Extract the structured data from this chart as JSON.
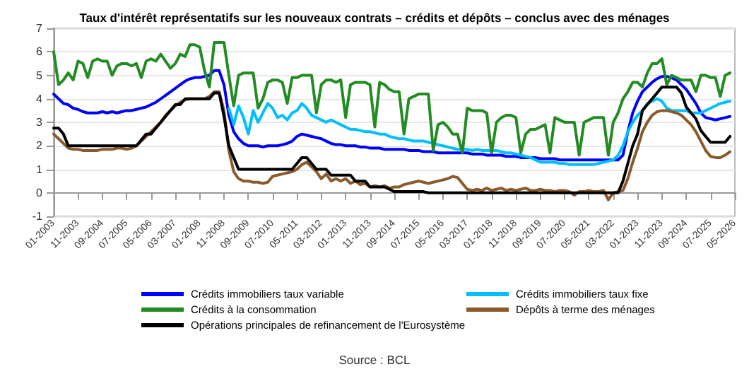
{
  "chart_data": {
    "type": "line",
    "title": "Taux d'intérêt représentatifs sur les nouveaux contrats – crédits et dépôts – conclus avec des ménages",
    "annotations": [
      "Source : BCL"
    ],
    "categories": [
      "01-2003",
      null,
      null,
      null,
      null,
      "11-2003",
      null,
      null,
      null,
      null,
      "09-2004",
      null,
      null,
      null,
      null,
      "07-2005",
      null,
      null,
      null,
      null,
      "05-2006",
      null,
      null,
      null,
      null,
      "03-2007",
      null,
      null,
      null,
      null,
      "01-2008",
      null,
      null,
      null,
      null,
      "11-2008",
      null,
      null,
      null,
      null,
      "09-2009",
      null,
      null,
      null,
      null,
      "07-2010",
      null,
      null,
      null,
      null,
      "05-2011",
      null,
      null,
      null,
      null,
      "03-2012",
      null,
      null,
      null,
      null,
      "01-2013",
      null,
      null,
      null,
      null,
      "11-2013",
      null,
      null,
      null,
      null,
      "09-2014",
      null,
      null,
      null,
      null,
      "07-2015",
      null,
      null,
      null,
      null,
      "05-2016",
      null,
      null,
      null,
      null,
      "03-2017",
      null,
      null,
      null,
      null,
      "01-2018",
      null,
      null,
      null,
      null,
      "11-2018",
      null,
      null,
      null,
      null,
      "09-2019",
      null,
      null,
      null,
      null,
      "07-2020",
      null,
      null,
      null,
      null,
      "05-2021",
      null,
      null,
      null,
      null,
      "03-2022",
      null,
      null,
      null,
      null,
      "01-2023",
      null,
      null,
      null,
      null,
      "11-2023",
      null,
      null,
      null,
      null,
      "09-2024",
      null,
      null,
      null,
      null,
      "07-2025",
      null,
      null,
      null,
      null,
      "05-2026"
    ],
    "series": [
      {
        "name": "Crédits immobiliers taux variable",
        "color": "#0000ff",
        "values": [
          4.2,
          4.0,
          3.8,
          3.75,
          3.6,
          3.55,
          3.45,
          3.4,
          3.4,
          3.4,
          3.45,
          3.4,
          3.45,
          3.4,
          3.45,
          3.5,
          3.5,
          3.55,
          3.6,
          3.65,
          3.75,
          3.85,
          4.0,
          4.15,
          4.3,
          4.45,
          4.6,
          4.75,
          4.85,
          4.9,
          4.9,
          4.95,
          5.0,
          5.2,
          5.2,
          4.6,
          3.3,
          2.6,
          2.3,
          2.1,
          2.0,
          2.0,
          2.0,
          1.95,
          2.0,
          2.0,
          2.0,
          2.05,
          2.1,
          2.2,
          2.4,
          2.5,
          2.45,
          2.4,
          2.35,
          2.3,
          2.2,
          2.1,
          2.05,
          2.05,
          2.0,
          2.0,
          2.0,
          1.95,
          1.95,
          1.9,
          1.9,
          1.9,
          1.85,
          1.85,
          1.85,
          1.85,
          1.85,
          1.8,
          1.8,
          1.8,
          1.75,
          1.75,
          1.75,
          1.7,
          1.7,
          1.7,
          1.7,
          1.7,
          1.7,
          1.7,
          1.65,
          1.65,
          1.65,
          1.6,
          1.6,
          1.6,
          1.6,
          1.55,
          1.55,
          1.55,
          1.5,
          1.5,
          1.5,
          1.5,
          1.45,
          1.45,
          1.45,
          1.45,
          1.4,
          1.4,
          1.4,
          1.4,
          1.4,
          1.4,
          1.4,
          1.4,
          1.4,
          1.4,
          1.4,
          1.4,
          1.4,
          1.6,
          2.6,
          3.4,
          3.9,
          4.3,
          4.5,
          4.7,
          4.85,
          4.95,
          4.95,
          4.9,
          4.8,
          4.6,
          4.4,
          4.1,
          3.8,
          3.4,
          3.2,
          3.15,
          3.1,
          3.15,
          3.2,
          3.25,
          null
        ]
      },
      {
        "name": "Crédits immobiliers taux fixe",
        "color": "#00bfff",
        "values": [
          null,
          null,
          null,
          null,
          null,
          null,
          null,
          null,
          null,
          null,
          null,
          null,
          null,
          null,
          null,
          null,
          null,
          null,
          null,
          null,
          null,
          null,
          null,
          null,
          null,
          null,
          null,
          null,
          null,
          null,
          null,
          null,
          null,
          null,
          null,
          null,
          3.6,
          2.9,
          3.7,
          3.2,
          2.5,
          3.5,
          3.0,
          3.4,
          3.8,
          3.6,
          3.2,
          3.3,
          3.1,
          3.4,
          3.5,
          3.8,
          3.6,
          3.3,
          3.2,
          3.1,
          3.0,
          3.1,
          3.0,
          2.9,
          2.8,
          2.7,
          2.7,
          2.65,
          2.6,
          2.6,
          2.55,
          2.5,
          2.5,
          2.4,
          2.35,
          2.3,
          2.3,
          2.25,
          2.2,
          2.2,
          2.2,
          2.15,
          2.1,
          2.05,
          2.0,
          1.95,
          1.9,
          1.85,
          1.85,
          1.85,
          1.8,
          1.85,
          1.8,
          1.8,
          1.8,
          1.8,
          1.75,
          1.7,
          1.7,
          1.65,
          1.6,
          1.55,
          1.5,
          1.4,
          1.3,
          1.3,
          1.3,
          1.3,
          1.25,
          1.25,
          1.2,
          1.2,
          1.2,
          1.2,
          1.2,
          1.2,
          1.25,
          1.3,
          1.35,
          1.4,
          1.6,
          2.0,
          2.6,
          3.0,
          3.3,
          3.5,
          3.8,
          3.9,
          4.0,
          3.9,
          3.6,
          3.5,
          3.5,
          3.5,
          3.5,
          3.4,
          3.4,
          3.4,
          3.5,
          3.6,
          3.7,
          3.8,
          3.85,
          3.9,
          null
        ]
      },
      {
        "name": "Crédits à la consommation",
        "color": "#228b22",
        "values": [
          6.0,
          4.6,
          4.8,
          5.1,
          4.8,
          5.6,
          5.5,
          4.9,
          5.6,
          5.7,
          5.6,
          5.6,
          5.0,
          5.4,
          5.5,
          5.5,
          5.4,
          5.5,
          4.9,
          5.6,
          5.7,
          5.6,
          5.9,
          5.6,
          5.3,
          5.5,
          5.9,
          5.8,
          6.3,
          6.3,
          6.2,
          5.2,
          4.5,
          6.4,
          6.4,
          6.4,
          5.0,
          3.7,
          5.0,
          5.1,
          5.1,
          5.1,
          3.6,
          4.0,
          4.7,
          4.8,
          4.8,
          4.7,
          3.8,
          4.9,
          4.9,
          5.0,
          5.0,
          5.0,
          3.4,
          4.6,
          4.8,
          4.8,
          4.7,
          4.8,
          3.2,
          4.6,
          4.7,
          4.7,
          4.7,
          4.6,
          2.8,
          4.7,
          4.6,
          4.4,
          4.3,
          4.3,
          2.5,
          4.0,
          4.1,
          4.2,
          4.2,
          4.2,
          1.8,
          2.9,
          3.0,
          2.8,
          2.5,
          2.5,
          1.7,
          3.6,
          3.5,
          3.5,
          3.5,
          3.4,
          1.7,
          3.0,
          3.2,
          3.3,
          3.3,
          3.2,
          1.7,
          2.5,
          2.7,
          2.7,
          2.8,
          2.9,
          1.7,
          3.2,
          3.1,
          3.0,
          3.0,
          3.0,
          1.6,
          3.0,
          3.1,
          3.2,
          3.2,
          3.2,
          1.6,
          3.0,
          3.4,
          4.0,
          4.3,
          4.7,
          4.7,
          4.5,
          5.1,
          5.5,
          5.5,
          5.7,
          4.6,
          5.0,
          4.9,
          4.8,
          4.8,
          4.8,
          4.3,
          5.0,
          5.0,
          4.9,
          4.9,
          4.1,
          5.0,
          5.1,
          null
        ]
      },
      {
        "name": "Dépôts à terme des ménages",
        "color": "#8b5a2b",
        "values": [
          2.5,
          2.3,
          2.1,
          1.9,
          1.85,
          1.85,
          1.8,
          1.8,
          1.8,
          1.8,
          1.85,
          1.85,
          1.85,
          1.9,
          1.9,
          1.85,
          1.9,
          2.0,
          2.2,
          2.4,
          2.6,
          2.8,
          3.0,
          3.3,
          3.5,
          3.7,
          3.85,
          3.95,
          4.0,
          4.0,
          4.0,
          4.0,
          4.1,
          4.3,
          4.3,
          3.5,
          1.8,
          0.9,
          0.6,
          0.5,
          0.5,
          0.45,
          0.45,
          0.4,
          0.45,
          0.7,
          0.75,
          0.8,
          0.85,
          0.9,
          1.0,
          1.2,
          1.3,
          1.1,
          0.9,
          0.6,
          0.8,
          0.5,
          0.6,
          0.5,
          0.6,
          0.4,
          0.5,
          0.35,
          0.4,
          0.25,
          0.3,
          0.25,
          0.3,
          0.2,
          0.25,
          0.25,
          0.35,
          0.4,
          0.45,
          0.5,
          0.45,
          0.4,
          0.45,
          0.5,
          0.55,
          0.6,
          0.7,
          0.65,
          0.4,
          0.15,
          0.1,
          0.15,
          0.1,
          0.2,
          0.1,
          0.15,
          0.2,
          0.1,
          0.15,
          0.1,
          0.15,
          0.2,
          0.1,
          0.1,
          0.15,
          0.1,
          0.1,
          0.05,
          0.1,
          0.1,
          0.05,
          -0.1,
          0.05,
          0.05,
          0.1,
          0.05,
          0.05,
          0.1,
          -0.3,
          0.0,
          0.05,
          0.1,
          0.6,
          1.3,
          1.9,
          2.6,
          3.0,
          3.3,
          3.45,
          3.5,
          3.5,
          3.45,
          3.4,
          3.3,
          3.1,
          2.9,
          2.6,
          2.2,
          1.8,
          1.55,
          1.5,
          1.5,
          1.6,
          1.75,
          null
        ]
      },
      {
        "name": "Opérations principales de refinancement de l'Eurosystème",
        "color": "#000000",
        "values": [
          2.75,
          2.75,
          2.5,
          2.0,
          2.0,
          2.0,
          2.0,
          2.0,
          2.0,
          2.0,
          2.0,
          2.0,
          2.0,
          2.0,
          2.0,
          2.0,
          2.0,
          2.0,
          2.25,
          2.5,
          2.5,
          2.75,
          3.0,
          3.25,
          3.5,
          3.75,
          3.75,
          4.0,
          4.0,
          4.0,
          4.0,
          4.0,
          4.0,
          4.25,
          4.25,
          3.25,
          2.0,
          1.5,
          1.0,
          1.0,
          1.0,
          1.0,
          1.0,
          1.0,
          1.0,
          1.0,
          1.0,
          1.0,
          1.0,
          1.0,
          1.25,
          1.5,
          1.5,
          1.25,
          1.0,
          1.0,
          1.0,
          0.75,
          0.75,
          0.75,
          0.75,
          0.75,
          0.5,
          0.5,
          0.5,
          0.25,
          0.25,
          0.25,
          0.25,
          0.15,
          0.05,
          0.05,
          0.05,
          0.05,
          0.05,
          0.05,
          0.05,
          0,
          0,
          0,
          0,
          0,
          0,
          0,
          0,
          0,
          0,
          0,
          0,
          0,
          0,
          0,
          0,
          0,
          0,
          0,
          0,
          0,
          0,
          0,
          0,
          0,
          0,
          0,
          0,
          0,
          0,
          0,
          0,
          0,
          0,
          0,
          0,
          0,
          0,
          0,
          0,
          0.5,
          1.25,
          2.0,
          2.5,
          3.5,
          3.75,
          4.0,
          4.25,
          4.5,
          4.5,
          4.5,
          4.5,
          4.25,
          3.65,
          3.4,
          3.15,
          2.65,
          2.4,
          2.15,
          2.15,
          2.15,
          2.15,
          2.4,
          null
        ]
      }
    ],
    "ylim": [
      -1,
      7
    ],
    "yticks": [
      -1,
      0,
      1,
      2,
      3,
      4,
      5,
      6,
      7
    ],
    "grid": "y",
    "legend": "bottom",
    "line_style": "solid"
  }
}
